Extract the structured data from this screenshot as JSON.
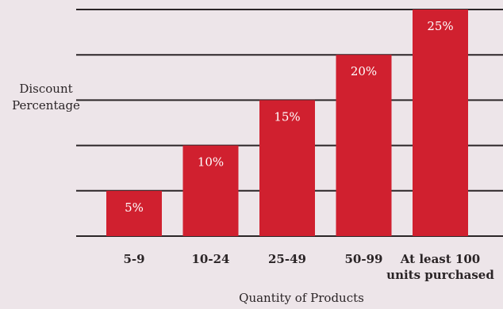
{
  "chart_data": {
    "type": "bar",
    "categories": [
      "5-9",
      "10-24",
      "25-49",
      "50-99",
      "At least 100 units purchased"
    ],
    "category_lines": [
      [
        "5-9"
      ],
      [
        "10-24"
      ],
      [
        "25-49"
      ],
      [
        "50-99"
      ],
      [
        "At least 100",
        "units purchased"
      ]
    ],
    "values": [
      5,
      10,
      15,
      20,
      25
    ],
    "value_labels": [
      "5%",
      "10%",
      "15%",
      "20%",
      "25%"
    ],
    "title": "",
    "xlabel": "Quantity of Products",
    "ylabel": "Discount Percentage",
    "ylim": [
      0,
      25
    ],
    "grid": true,
    "gridlines": [
      0,
      5,
      10,
      15,
      20,
      25
    ],
    "colors": {
      "bar": "#d0202f",
      "grid": "#2b2527",
      "background": "#ede5e9",
      "bar_label": "#ffffff",
      "text": "#2a2426"
    }
  }
}
